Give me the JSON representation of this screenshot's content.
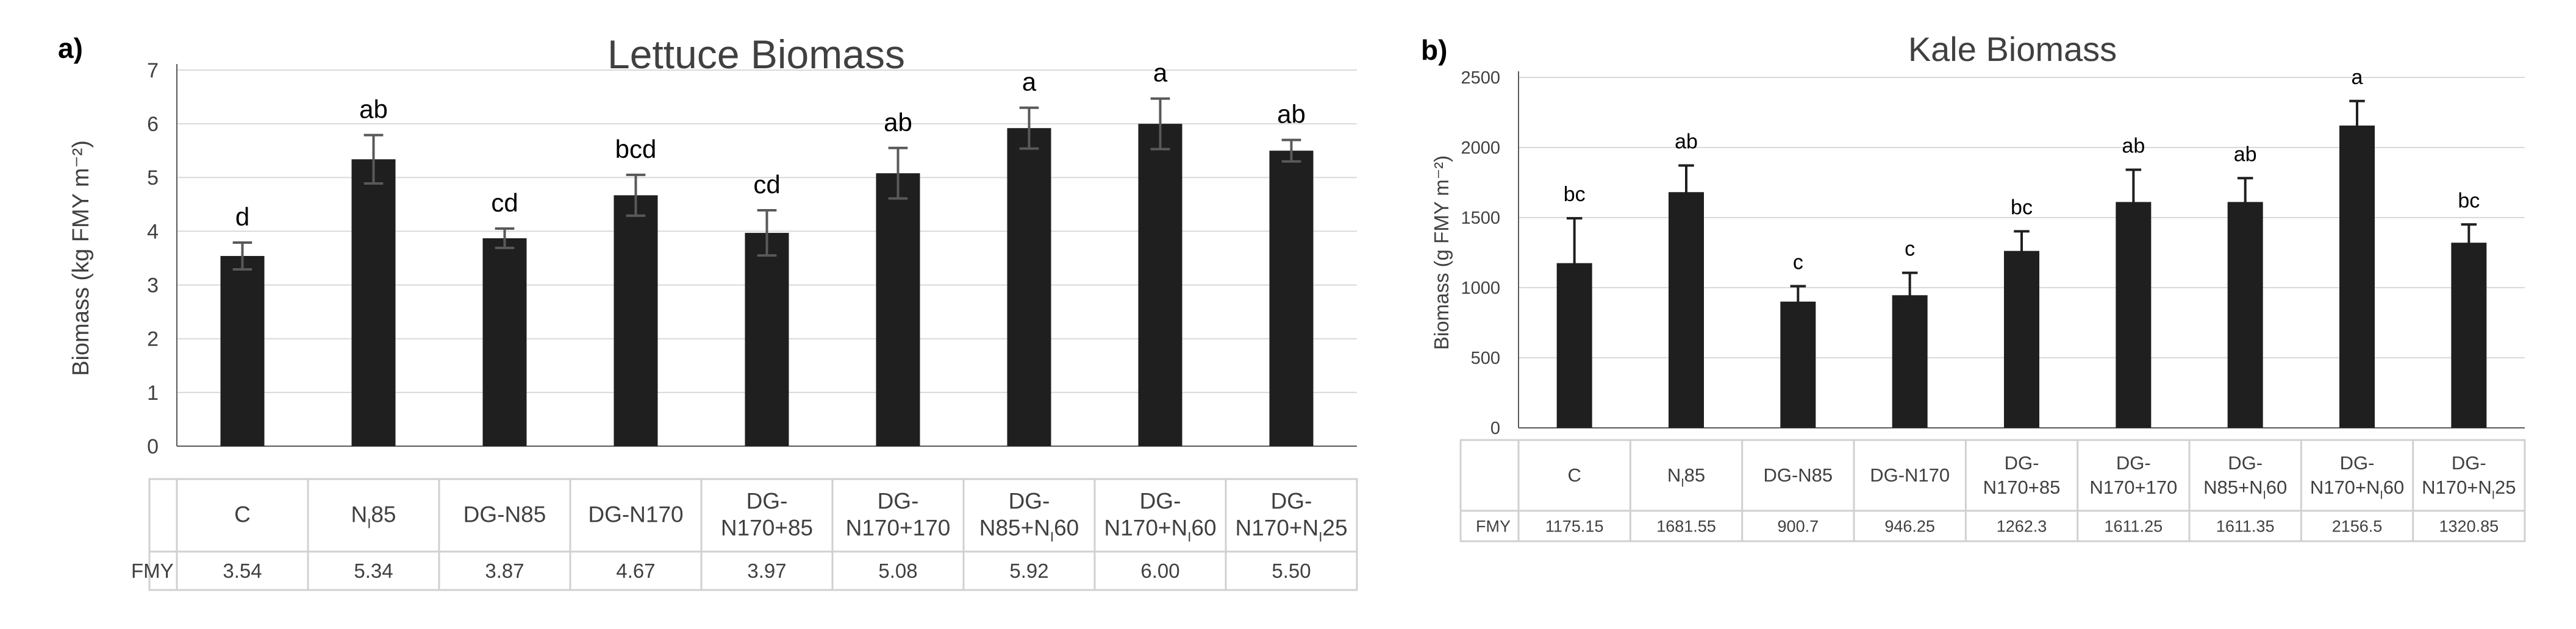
{
  "chart_data": [
    {
      "panel_label": "a)",
      "type": "bar",
      "title": "Lettuce Biomass",
      "ylabel": "Biomass (kg FMY m⁻²)",
      "xlabel": "",
      "ylim": [
        0,
        7
      ],
      "yticks": [
        0,
        1,
        2,
        3,
        4,
        5,
        6,
        7
      ],
      "grid": true,
      "categories": [
        "C",
        "NI85",
        "DG-N85",
        "DG-N170",
        "DG-N170+85",
        "DG-N170+170",
        "DG-N85+NI60",
        "DG-N170+NI60",
        "DG-N170+NI25"
      ],
      "category_labels": [
        [
          "C"
        ],
        [
          "N",
          "I",
          "85"
        ],
        [
          "DG-N85"
        ],
        [
          "DG-N170"
        ],
        [
          "DG-",
          "N170+85"
        ],
        [
          "DG-",
          "N170+170"
        ],
        [
          "DG-",
          "N85+N",
          "I",
          "60"
        ],
        [
          "DG-",
          "N170+N",
          "I",
          "60"
        ],
        [
          "DG-",
          "N170+N",
          "I",
          "25"
        ]
      ],
      "values": [
        3.54,
        5.34,
        3.87,
        4.67,
        3.97,
        5.08,
        5.92,
        6.0,
        5.5
      ],
      "errors": [
        0.25,
        0.45,
        0.18,
        0.38,
        0.42,
        0.47,
        0.38,
        0.47,
        0.2
      ],
      "significance_letters": [
        "d",
        "ab",
        "cd",
        "bcd",
        "cd",
        "ab",
        "a",
        "a",
        "ab"
      ],
      "table_row_label": "FMY",
      "table_values": [
        "3.54",
        "5.34",
        "3.87",
        "4.67",
        "3.97",
        "5.08",
        "5.92",
        "6.00",
        "5.50"
      ],
      "bar_color": "#1f1f1f",
      "error_color": "#595959"
    },
    {
      "panel_label": "b)",
      "type": "bar",
      "title": "Kale Biomass",
      "ylabel": "Biomass (g FMY m⁻²)",
      "xlabel": "",
      "ylim": [
        0,
        2500
      ],
      "yticks": [
        0,
        500,
        1000,
        1500,
        2000,
        2500
      ],
      "grid": true,
      "categories": [
        "C",
        "NI85",
        "DG-N85",
        "DG-N170",
        "DG-N170+85",
        "DG-N170+170",
        "DG-N85+NI60",
        "DG-N170+NI60",
        "DG-N170+NI25"
      ],
      "category_labels": [
        [
          "C"
        ],
        [
          "N",
          "I",
          "85"
        ],
        [
          "DG-N85"
        ],
        [
          "DG-N170"
        ],
        [
          "DG-",
          "N170+85"
        ],
        [
          "DG-",
          "N170+170"
        ],
        [
          "DG-",
          "N85+N",
          "I",
          "60"
        ],
        [
          "DG-",
          "N170+N",
          "I",
          "60"
        ],
        [
          "DG-",
          "N170+N",
          "I",
          "25"
        ]
      ],
      "values": [
        1175.15,
        1681.55,
        900.7,
        946.25,
        1262.3,
        1611.25,
        1611.35,
        2156.5,
        1320.85
      ],
      "errors": [
        320,
        190,
        110,
        160,
        140,
        230,
        170,
        175,
        130
      ],
      "significance_letters": [
        "bc",
        "ab",
        "c",
        "c",
        "bc",
        "ab",
        "ab",
        "a",
        "bc"
      ],
      "table_row_label": "FMY",
      "table_values": [
        "1175.15",
        "1681.55",
        "900.7",
        "946.25",
        "1262.3",
        "1611.25",
        "1611.35",
        "2156.5",
        "1320.85"
      ],
      "bar_color": "#1f1f1f",
      "error_color": "#1f1f1f"
    }
  ],
  "colors": {
    "text": "#404040",
    "axis": "#595959",
    "grid": "#d9d9d9",
    "table_border": "#d0d0d0"
  }
}
